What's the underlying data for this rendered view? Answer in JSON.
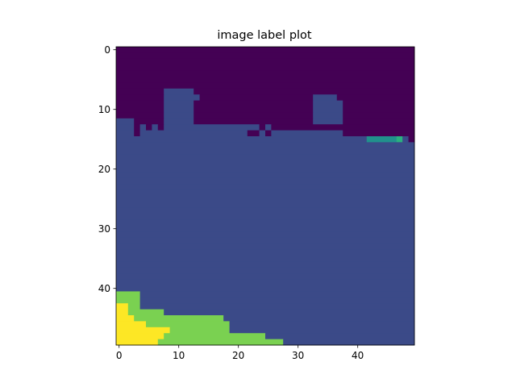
{
  "chart_data": {
    "type": "heatmap",
    "title": "image label plot",
    "xlabel": "",
    "ylabel": "",
    "xlim": [
      -0.5,
      49.5
    ],
    "ylim": [
      49.5,
      -0.5
    ],
    "x_ticks": [
      "0",
      "10",
      "20",
      "30",
      "40"
    ],
    "y_ticks": [
      "0",
      "10",
      "20",
      "30",
      "40"
    ],
    "grid": false,
    "colormap": "viridis",
    "label_colors": {
      "0": "#440154",
      "1": "#3b4a88",
      "2": "#21918c",
      "3": "#2bb07f",
      "4": "#7ad151",
      "5": "#fde725"
    },
    "row_runs": [
      [
        [
          0,
          49,
          0
        ]
      ],
      [
        [
          0,
          49,
          0
        ]
      ],
      [
        [
          0,
          49,
          0
        ]
      ],
      [
        [
          0,
          49,
          0
        ]
      ],
      [
        [
          0,
          49,
          0
        ]
      ],
      [
        [
          0,
          49,
          0
        ]
      ],
      [
        [
          0,
          49,
          0
        ]
      ],
      [
        [
          0,
          7,
          0
        ],
        [
          8,
          12,
          1
        ],
        [
          13,
          49,
          0
        ]
      ],
      [
        [
          0,
          7,
          0
        ],
        [
          8,
          13,
          1
        ],
        [
          14,
          32,
          0
        ],
        [
          33,
          35,
          1
        ],
        [
          36,
          36,
          1
        ],
        [
          37,
          49,
          0
        ]
      ],
      [
        [
          0,
          7,
          0
        ],
        [
          8,
          12,
          1
        ],
        [
          13,
          32,
          0
        ],
        [
          33,
          37,
          1
        ],
        [
          38,
          49,
          0
        ]
      ],
      [
        [
          0,
          7,
          0
        ],
        [
          8,
          12,
          1
        ],
        [
          13,
          32,
          0
        ],
        [
          33,
          37,
          1
        ],
        [
          38,
          49,
          0
        ]
      ],
      [
        [
          0,
          7,
          0
        ],
        [
          8,
          12,
          1
        ],
        [
          13,
          32,
          0
        ],
        [
          33,
          37,
          1
        ],
        [
          38,
          49,
          0
        ]
      ],
      [
        [
          0,
          2,
          1
        ],
        [
          3,
          7,
          0
        ],
        [
          8,
          12,
          1
        ],
        [
          13,
          32,
          0
        ],
        [
          33,
          37,
          1
        ],
        [
          38,
          49,
          0
        ]
      ],
      [
        [
          0,
          2,
          1
        ],
        [
          3,
          3,
          0
        ],
        [
          4,
          4,
          1
        ],
        [
          5,
          5,
          0
        ],
        [
          6,
          6,
          1
        ],
        [
          7,
          7,
          0
        ],
        [
          8,
          23,
          1
        ],
        [
          24,
          24,
          0
        ],
        [
          25,
          25,
          1
        ],
        [
          26,
          49,
          0
        ]
      ],
      [
        [
          0,
          2,
          1
        ],
        [
          3,
          3,
          0
        ],
        [
          4,
          21,
          1
        ],
        [
          22,
          23,
          0
        ],
        [
          24,
          24,
          1
        ],
        [
          25,
          25,
          0
        ],
        [
          26,
          37,
          1
        ],
        [
          38,
          49,
          0
        ]
      ],
      [
        [
          0,
          41,
          1
        ],
        [
          42,
          46,
          2
        ],
        [
          47,
          47,
          3
        ],
        [
          48,
          48,
          1
        ],
        [
          49,
          49,
          0
        ]
      ],
      [
        [
          0,
          49,
          1
        ]
      ],
      [
        [
          0,
          49,
          1
        ]
      ],
      [
        [
          0,
          49,
          1
        ]
      ],
      [
        [
          0,
          49,
          1
        ]
      ],
      [
        [
          0,
          49,
          1
        ]
      ],
      [
        [
          0,
          49,
          1
        ]
      ],
      [
        [
          0,
          49,
          1
        ]
      ],
      [
        [
          0,
          49,
          1
        ]
      ],
      [
        [
          0,
          49,
          1
        ]
      ],
      [
        [
          0,
          49,
          1
        ]
      ],
      [
        [
          0,
          49,
          1
        ]
      ],
      [
        [
          0,
          49,
          1
        ]
      ],
      [
        [
          0,
          49,
          1
        ]
      ],
      [
        [
          0,
          49,
          1
        ]
      ],
      [
        [
          0,
          49,
          1
        ]
      ],
      [
        [
          0,
          49,
          1
        ]
      ],
      [
        [
          0,
          49,
          1
        ]
      ],
      [
        [
          0,
          49,
          1
        ]
      ],
      [
        [
          0,
          49,
          1
        ]
      ],
      [
        [
          0,
          49,
          1
        ]
      ],
      [
        [
          0,
          49,
          1
        ]
      ],
      [
        [
          0,
          49,
          1
        ]
      ],
      [
        [
          0,
          49,
          1
        ]
      ],
      [
        [
          0,
          49,
          1
        ]
      ],
      [
        [
          0,
          49,
          1
        ]
      ],
      [
        [
          0,
          3,
          4
        ],
        [
          4,
          49,
          1
        ]
      ],
      [
        [
          0,
          3,
          4
        ],
        [
          4,
          49,
          1
        ]
      ],
      [
        [
          0,
          1,
          5
        ],
        [
          2,
          3,
          4
        ],
        [
          4,
          49,
          1
        ]
      ],
      [
        [
          0,
          1,
          5
        ],
        [
          2,
          7,
          4
        ],
        [
          8,
          49,
          1
        ]
      ],
      [
        [
          0,
          2,
          5
        ],
        [
          3,
          9,
          4
        ],
        [
          10,
          17,
          4
        ],
        [
          18,
          49,
          1
        ]
      ],
      [
        [
          0,
          4,
          5
        ],
        [
          5,
          18,
          4
        ],
        [
          19,
          49,
          1
        ]
      ],
      [
        [
          0,
          8,
          5
        ],
        [
          9,
          18,
          4
        ],
        [
          19,
          49,
          1
        ]
      ],
      [
        [
          0,
          7,
          5
        ],
        [
          8,
          24,
          4
        ],
        [
          25,
          49,
          1
        ]
      ],
      [
        [
          0,
          6,
          5
        ],
        [
          7,
          27,
          4
        ],
        [
          28,
          49,
          1
        ]
      ]
    ]
  }
}
